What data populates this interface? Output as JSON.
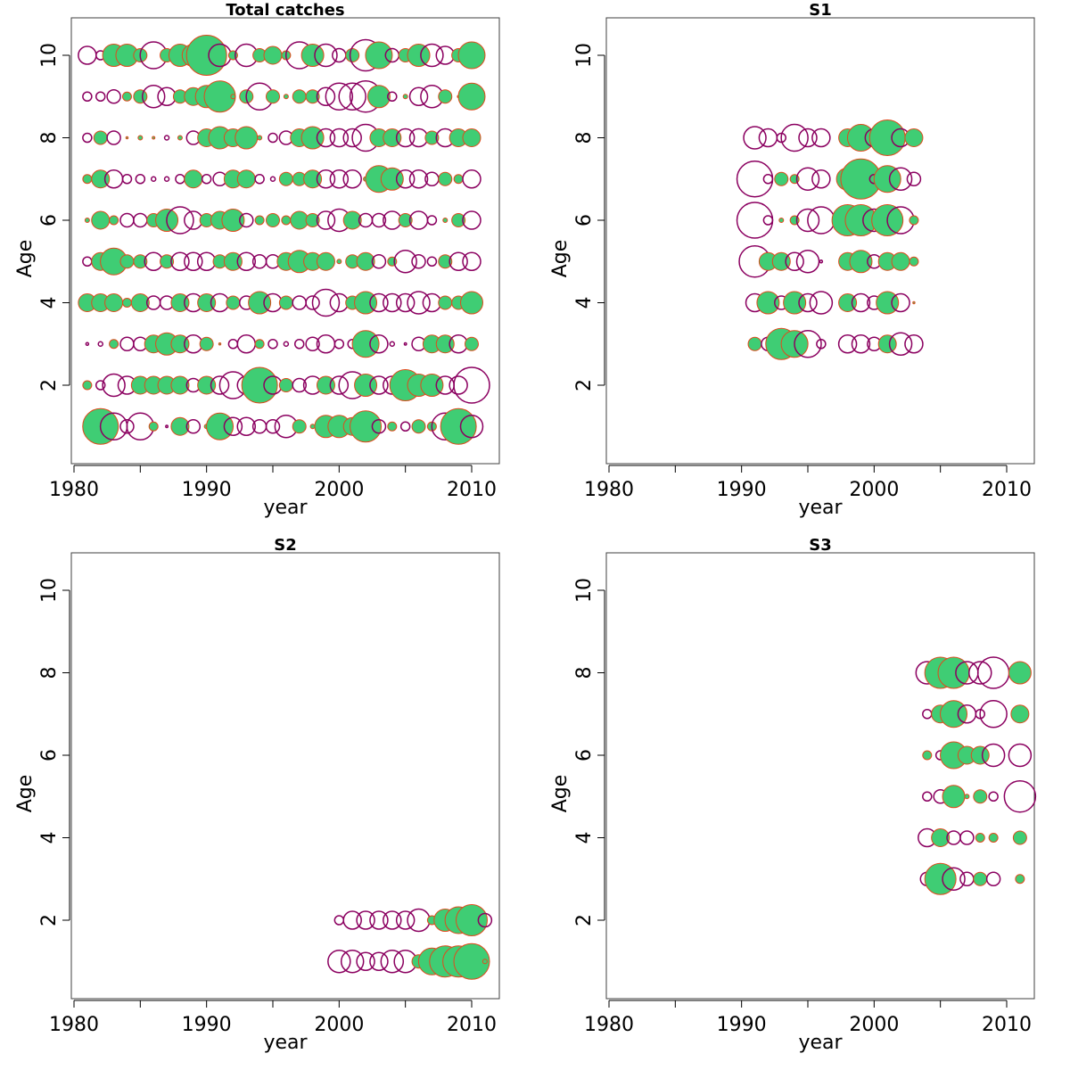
{
  "colors": {
    "positive": "#3fcd74",
    "positive_stroke": "#e04a1c",
    "negative_stroke": "#8b0060"
  },
  "chart_data": [
    {
      "type": "scatter",
      "subtype": "bubble",
      "title": "Total catches",
      "xlabel": "year",
      "ylabel": "Age",
      "xlim": [
        1980,
        2012
      ],
      "ylim": [
        0,
        11
      ],
      "xticks": [
        "1980",
        "1990",
        "2000",
        "2010"
      ],
      "yticks": [
        "2",
        "4",
        "6",
        "8",
        "10"
      ],
      "x": [
        1981,
        1982,
        1983,
        1984,
        1985,
        1986,
        1987,
        1988,
        1989,
        1990,
        1991,
        1992,
        1993,
        1994,
        1995,
        1996,
        1997,
        1998,
        1999,
        2000,
        2001,
        2002,
        2003,
        2004,
        2005,
        2006,
        2007,
        2008,
        2009,
        2010
      ],
      "ages": [
        1,
        2,
        3,
        4,
        5,
        6,
        7,
        8,
        9,
        10
      ],
      "values": [
        [
          -0.1,
          0.8,
          -0.6,
          -0.3,
          -0.6,
          0.2,
          0.0,
          0.4,
          -0.3,
          0.1,
          0.6,
          -0.4,
          -0.4,
          -0.3,
          -0.3,
          -0.5,
          0.3,
          0.1,
          0.5,
          0.5,
          0.4,
          0.7,
          -0.3,
          0.2,
          -0.2,
          0.3,
          0.2,
          -0.6,
          0.8,
          -0.5
        ],
        [
          0.2,
          -0.2,
          -0.5,
          -0.4,
          0.4,
          0.4,
          0.4,
          0.4,
          -0.3,
          0.4,
          -0.4,
          -0.6,
          -0.4,
          0.8,
          -0.4,
          0.3,
          -0.3,
          -0.4,
          0.4,
          -0.4,
          -0.6,
          0.5,
          -0.4,
          -0.4,
          0.7,
          0.5,
          0.5,
          -0.4,
          -0.4,
          -0.8
        ],
        [
          -0.06,
          -0.1,
          0.2,
          -0.3,
          -0.3,
          0.4,
          0.5,
          0.4,
          -0.4,
          0.3,
          0.04,
          -0.2,
          -0.4,
          0.2,
          -0.2,
          -0.1,
          -0.2,
          -0.3,
          -0.4,
          -0.2,
          -0.2,
          0.6,
          -0.4,
          -0.1,
          -0.04,
          -0.3,
          0.4,
          0.4,
          -0.4,
          0.3
        ],
        [
          0.4,
          0.4,
          0.4,
          0.2,
          0.4,
          -0.3,
          -0.3,
          0.4,
          -0.4,
          0.4,
          -0.4,
          0.3,
          -0.3,
          0.5,
          -0.4,
          0.3,
          -0.3,
          -0.3,
          -0.6,
          -0.4,
          0.3,
          0.5,
          -0.4,
          -0.4,
          -0.4,
          -0.5,
          -0.4,
          0.3,
          0.3,
          0.5
        ],
        [
          -0.2,
          0.4,
          0.6,
          0.3,
          0.3,
          -0.4,
          0.3,
          -0.4,
          -0.4,
          -0.4,
          0.3,
          0.4,
          -0.4,
          -0.3,
          -0.3,
          0.4,
          0.5,
          0.4,
          0.4,
          0.1,
          0.3,
          0.4,
          -0.3,
          0.2,
          -0.5,
          -0.3,
          -0.2,
          0.3,
          -0.4,
          -0.4
        ],
        [
          0.1,
          0.4,
          0.2,
          -0.3,
          -0.3,
          0.3,
          0.5,
          -0.6,
          -0.4,
          0.3,
          0.4,
          0.5,
          -0.3,
          0.2,
          0.3,
          0.2,
          0.4,
          0.3,
          -0.4,
          -0.5,
          0.4,
          -0.3,
          -0.3,
          -0.4,
          0.3,
          -0.4,
          -0.2,
          0.1,
          0.3,
          -0.4
        ],
        [
          0.2,
          0.4,
          -0.4,
          -0.2,
          -0.2,
          -0.1,
          -0.1,
          -0.2,
          0.4,
          -0.2,
          -0.3,
          0.4,
          0.4,
          -0.2,
          -0.1,
          0.3,
          0.3,
          0.4,
          -0.4,
          -0.4,
          -0.4,
          0.1,
          0.6,
          0.5,
          -0.4,
          -0.4,
          -0.3,
          0.3,
          0.2,
          -0.4
        ],
        [
          -0.2,
          0.3,
          -0.3,
          0.05,
          0.1,
          0.06,
          -0.1,
          0.1,
          -0.3,
          0.4,
          0.5,
          0.4,
          0.5,
          0.1,
          -0.2,
          -0.3,
          0.4,
          0.5,
          -0.4,
          -0.4,
          -0.4,
          -0.6,
          0.4,
          0.4,
          -0.4,
          -0.4,
          0.3,
          -0.4,
          0.4,
          0.4
        ],
        [
          -0.2,
          -0.2,
          -0.3,
          0.2,
          0.3,
          -0.5,
          -0.4,
          0.3,
          0.4,
          0.5,
          0.7,
          0.1,
          0.3,
          -0.6,
          0.3,
          0.1,
          0.3,
          0.3,
          -0.4,
          -0.6,
          -0.6,
          -0.7,
          0.5,
          -0.2,
          0.1,
          -0.4,
          -0.5,
          0.3,
          0.05,
          0.6
        ],
        [
          -0.4,
          -0.2,
          0.5,
          0.5,
          0.3,
          -0.6,
          0.3,
          0.5,
          0.5,
          0.9,
          -0.5,
          0.2,
          -0.5,
          0.3,
          0.4,
          0.2,
          -0.6,
          0.5,
          -0.5,
          -0.3,
          0.3,
          -0.7,
          0.6,
          -0.3,
          0.3,
          0.5,
          -0.5,
          -0.4,
          0.3,
          0.6
        ]
      ]
    },
    {
      "type": "scatter",
      "subtype": "bubble",
      "title": "S1",
      "xlabel": "year",
      "ylabel": "Age",
      "xlim": [
        1980,
        2012
      ],
      "ylim": [
        0,
        11
      ],
      "xticks": [
        "1980",
        "1990",
        "2000",
        "2010"
      ],
      "yticks": [
        "2",
        "4",
        "6",
        "8",
        "10"
      ],
      "x": [
        1991,
        1992,
        1993,
        1994,
        1995,
        1996,
        1998,
        1999,
        2000,
        2001,
        2002,
        2003
      ],
      "ages": [
        3,
        4,
        5,
        6,
        7,
        8
      ],
      "values": [
        [
          0.3,
          -0.3,
          0.7,
          0.6,
          -0.6,
          -0.2,
          -0.4,
          -0.4,
          -0.3,
          0.4,
          -0.5,
          -0.4
        ],
        [
          -0.4,
          0.5,
          -0.3,
          0.5,
          -0.4,
          -0.5,
          0.4,
          -0.4,
          -0.3,
          0.5,
          -0.4,
          0.04
        ],
        [
          -0.7,
          0.4,
          0.4,
          -0.4,
          -0.5,
          -0.06,
          0.4,
          0.5,
          -0.3,
          0.4,
          0.4,
          0.2
        ],
        [
          -0.8,
          -0.2,
          0.1,
          0.2,
          -0.5,
          -0.6,
          0.7,
          0.7,
          -0.5,
          0.7,
          -0.6,
          0.2
        ],
        [
          -0.8,
          -0.2,
          0.3,
          0.2,
          -0.5,
          -0.4,
          0.5,
          0.9,
          -0.2,
          0.6,
          -0.5,
          -0.3
        ],
        [
          -0.5,
          -0.4,
          -0.2,
          -0.6,
          -0.4,
          -0.4,
          0.4,
          0.6,
          -0.4,
          0.8,
          -0.4,
          0.4
        ]
      ]
    },
    {
      "type": "scatter",
      "subtype": "bubble",
      "title": "S2",
      "xlabel": "year",
      "ylabel": "Age",
      "xlim": [
        1980,
        2012
      ],
      "ylim": [
        0,
        11
      ],
      "xticks": [
        "1980",
        "1990",
        "2000",
        "2010"
      ],
      "yticks": [
        "2",
        "4",
        "6",
        "8",
        "10"
      ],
      "x": [
        2000,
        2001,
        2002,
        2003,
        2004,
        2005,
        2006,
        2007,
        2008,
        2009,
        2010,
        2011
      ],
      "ages": [
        1,
        2
      ],
      "values": [
        [
          -0.5,
          -0.5,
          -0.4,
          -0.4,
          -0.5,
          -0.5,
          0.3,
          0.6,
          0.7,
          0.7,
          0.8,
          0.1
        ],
        [
          -0.2,
          -0.4,
          -0.4,
          -0.4,
          -0.4,
          -0.4,
          -0.5,
          0.2,
          0.5,
          0.6,
          0.7,
          -0.3
        ]
      ]
    },
    {
      "type": "scatter",
      "subtype": "bubble",
      "title": "S3",
      "xlabel": "year",
      "ylabel": "Age",
      "xlim": [
        1980,
        2012
      ],
      "ylim": [
        0,
        11
      ],
      "xticks": [
        "1980",
        "1990",
        "2000",
        "2010"
      ],
      "yticks": [
        "2",
        "4",
        "6",
        "8",
        "10"
      ],
      "x": [
        2004,
        2005,
        2006,
        2007,
        2008,
        2009,
        2011
      ],
      "ages": [
        3,
        4,
        5,
        6,
        7,
        8
      ],
      "values": [
        [
          -0.3,
          0.7,
          -0.5,
          -0.3,
          0.3,
          -0.3,
          0.2
        ],
        [
          -0.4,
          0.4,
          -0.3,
          -0.3,
          0.2,
          0.2,
          0.3
        ],
        [
          -0.2,
          -0.3,
          0.5,
          0.1,
          0.3,
          -0.2,
          -0.7
        ],
        [
          0.2,
          -0.2,
          0.6,
          0.4,
          0.4,
          -0.5,
          -0.5
        ],
        [
          -0.2,
          0.4,
          0.6,
          -0.4,
          -0.2,
          -0.6,
          0.4
        ],
        [
          -0.5,
          0.7,
          0.7,
          -0.5,
          -0.5,
          -0.7,
          0.5
        ]
      ]
    }
  ]
}
